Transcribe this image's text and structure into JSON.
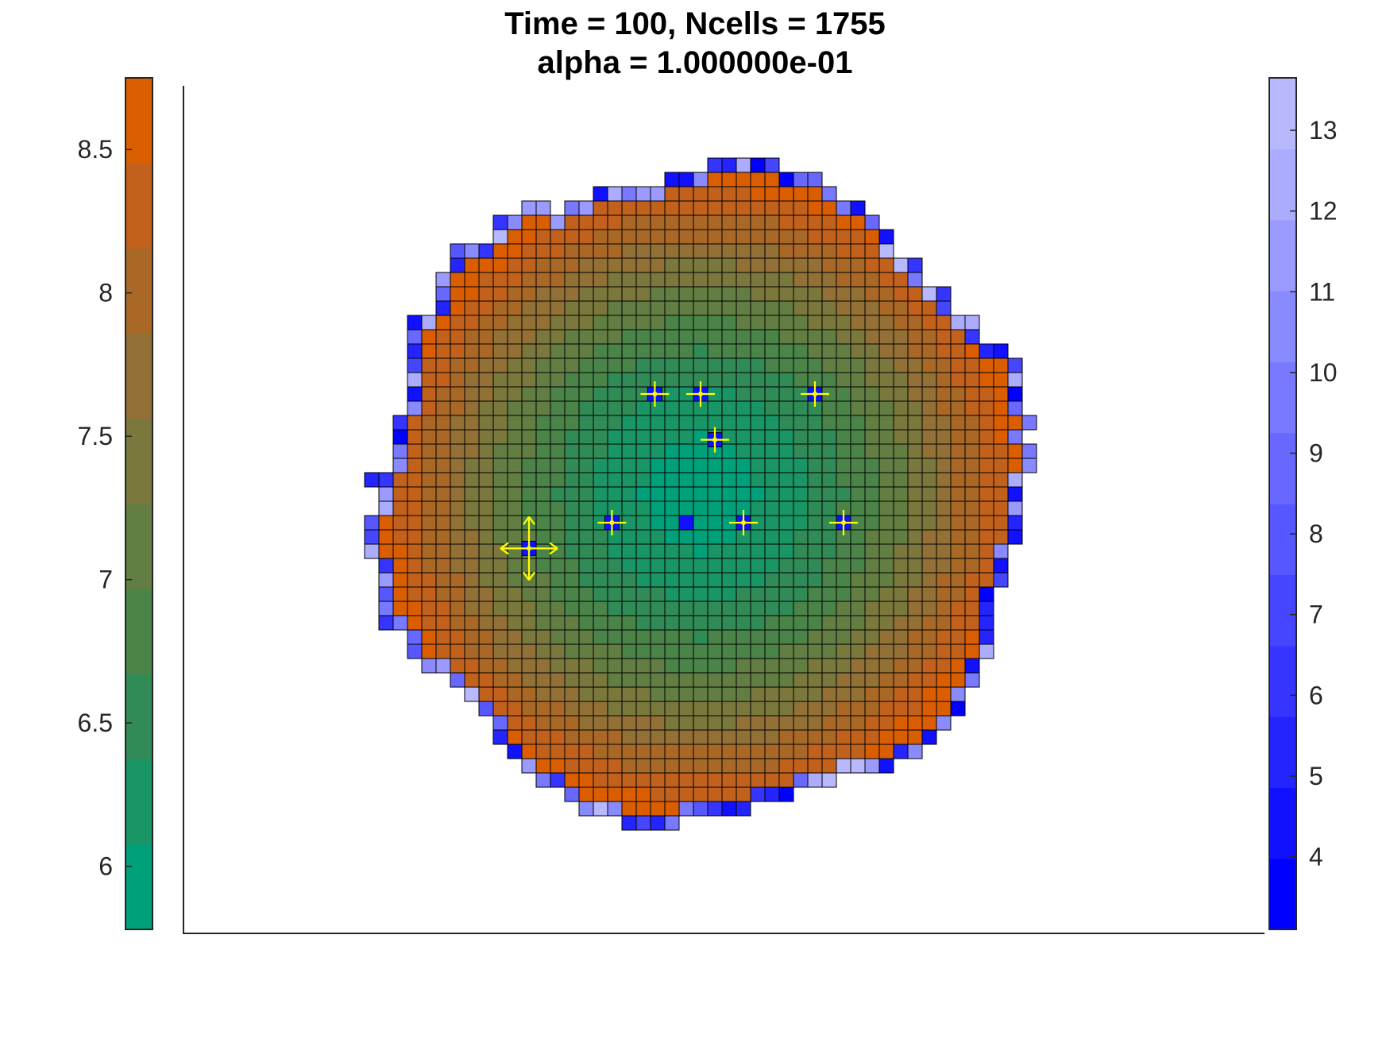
{
  "chart_data": {
    "type": "heatmap",
    "title_line1": "Time = 100, Ncells = 1755",
    "title_line2": "alpha = 1.000000e-01",
    "left_colorbar": {
      "range": [
        5.78,
        8.75
      ],
      "ticks": [
        6,
        6.5,
        7,
        7.5,
        8,
        8.5
      ],
      "tick_labels": [
        "6",
        "6.5",
        "7",
        "7.5",
        "8",
        "8.5"
      ],
      "colors": [
        "#00A07A",
        "#199566",
        "#318B57",
        "#4A8449",
        "#627E43",
        "#7A783C",
        "#927036",
        "#AA6827",
        "#C2611C",
        "#DA5E00"
      ]
    },
    "right_colorbar": {
      "range": [
        3.1,
        13.65
      ],
      "ticks": [
        4,
        5,
        6,
        7,
        8,
        9,
        10,
        11,
        12,
        13
      ],
      "tick_labels": [
        "4",
        "5",
        "6",
        "7",
        "8",
        "9",
        "10",
        "11",
        "12",
        "13"
      ],
      "colors": [
        "#0000FF",
        "#1111FF",
        "#2424FF",
        "#3535FF",
        "#4646FF",
        "#5757FF",
        "#6868FF",
        "#7979FF",
        "#8A8AFF",
        "#9B9BFF",
        "#ACACFF",
        "#B8B8FF"
      ]
    },
    "colony": {
      "center": [
        0,
        0
      ],
      "radius": 22.5,
      "cell_value_center": 5.9,
      "cell_value_edge": 8.7
    },
    "markers": [
      {
        "x": -3.2,
        "y": 7.0,
        "value": 4
      },
      {
        "x": 0.0,
        "y": 7.0,
        "value": 4
      },
      {
        "x": 8.0,
        "y": 7.0,
        "value": 4
      },
      {
        "x": 1.0,
        "y": 3.8,
        "value": 4
      },
      {
        "x": -6.2,
        "y": -2.0,
        "value": 4
      },
      {
        "x": 3.0,
        "y": -2.0,
        "value": 4
      },
      {
        "x": 10.0,
        "y": -2.0,
        "value": 4
      },
      {
        "x": -12.0,
        "y": -3.8,
        "value": 4
      }
    ],
    "lone_cell": {
      "x": -1.0,
      "y": -2.0,
      "value": 4
    }
  }
}
